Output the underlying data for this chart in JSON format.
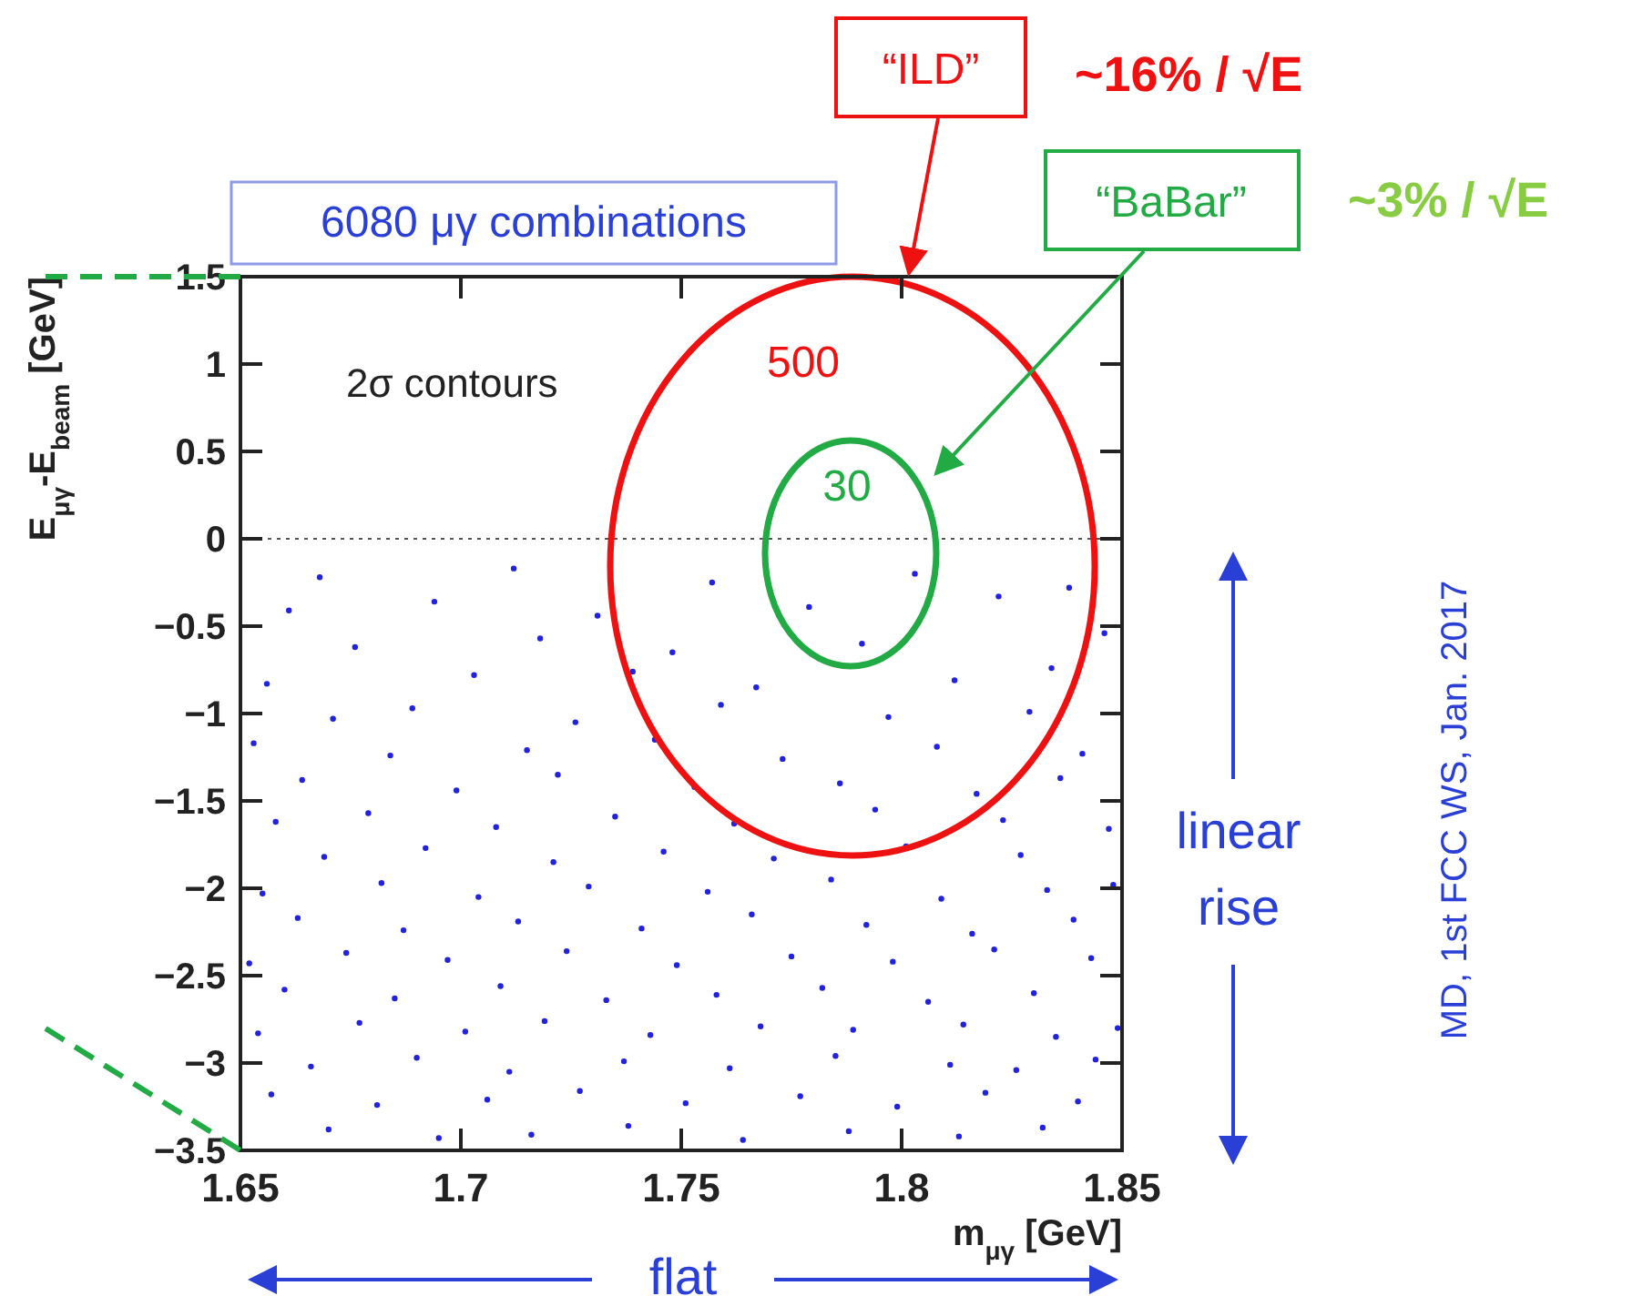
{
  "chart_data": {
    "type": "scatter",
    "xlabel": "m$_{μγ}$ [GeV]",
    "ylabel": "E$_{μγ}$-E$_{beam}$ [GeV]",
    "xlim": [
      1.65,
      1.85
    ],
    "xticks": [
      1.65,
      1.7,
      1.75,
      1.8,
      1.85
    ],
    "ylim": [
      -3.5,
      1.5
    ],
    "yticks": [
      1.5,
      1,
      0.5,
      0,
      {
        "value": -0.5,
        "label": "−0.5"
      },
      {
        "value": -1,
        "label": "−1"
      },
      {
        "value": -1.5,
        "label": "−1.5"
      },
      {
        "value": -2,
        "label": "−2"
      },
      {
        "value": -2.5,
        "label": "−2.5"
      },
      {
        "value": -3,
        "label": "−3"
      },
      {
        "value": -3.5,
        "label": "−3.5"
      }
    ],
    "grid": false,
    "marker": "circle",
    "ref_lines": [
      {
        "axis": "y",
        "value": 0,
        "color": "#555555",
        "line_style": "dotted"
      }
    ],
    "series": [
      {
        "color": "#2222dd",
        "x": [
          1.668,
          1.712,
          1.757,
          1.803,
          1.838,
          1.661,
          1.694,
          1.731,
          1.779,
          1.822,
          1.676,
          1.718,
          1.748,
          1.791,
          1.846,
          1.656,
          1.703,
          1.739,
          1.767,
          1.812,
          1.834,
          1.671,
          1.689,
          1.726,
          1.759,
          1.797,
          1.829,
          1.653,
          1.684,
          1.715,
          1.744,
          1.773,
          1.808,
          1.841,
          1.664,
          1.699,
          1.722,
          1.753,
          1.786,
          1.817,
          1.836,
          1.658,
          1.679,
          1.708,
          1.735,
          1.762,
          1.794,
          1.823,
          1.847,
          1.669,
          1.692,
          1.721,
          1.746,
          1.771,
          1.801,
          1.827,
          1.655,
          1.682,
          1.704,
          1.729,
          1.756,
          1.784,
          1.809,
          1.833,
          1.848,
          1.663,
          1.687,
          1.713,
          1.741,
          1.766,
          1.792,
          1.816,
          1.839,
          1.652,
          1.674,
          1.697,
          1.724,
          1.749,
          1.775,
          1.798,
          1.821,
          1.843,
          1.66,
          1.685,
          1.709,
          1.733,
          1.758,
          1.782,
          1.806,
          1.83,
          1.654,
          1.677,
          1.701,
          1.719,
          1.743,
          1.768,
          1.789,
          1.814,
          1.835,
          1.849,
          1.666,
          1.69,
          1.711,
          1.737,
          1.761,
          1.785,
          1.811,
          1.826,
          1.844,
          1.657,
          1.681,
          1.706,
          1.727,
          1.751,
          1.777,
          1.799,
          1.819,
          1.84,
          1.67,
          1.695,
          1.716,
          1.738,
          1.764,
          1.788,
          1.813,
          1.832
        ],
        "values": [
          -0.22,
          -0.17,
          -0.25,
          -0.2,
          -0.28,
          -0.41,
          -0.36,
          -0.44,
          -0.39,
          -0.33,
          -0.62,
          -0.57,
          -0.65,
          -0.6,
          -0.54,
          -0.83,
          -0.78,
          -0.76,
          -0.85,
          -0.81,
          -0.74,
          -1.03,
          -0.97,
          -1.05,
          -0.95,
          -1.02,
          -0.99,
          -1.17,
          -1.24,
          -1.21,
          -1.15,
          -1.26,
          -1.19,
          -1.23,
          -1.38,
          -1.44,
          -1.35,
          -1.42,
          -1.4,
          -1.46,
          -1.37,
          -1.62,
          -1.57,
          -1.65,
          -1.59,
          -1.63,
          -1.55,
          -1.61,
          -1.66,
          -1.82,
          -1.77,
          -1.85,
          -1.79,
          -1.83,
          -1.76,
          -1.81,
          -2.03,
          -1.97,
          -2.05,
          -1.99,
          -2.02,
          -1.95,
          -2.06,
          -2.01,
          -1.98,
          -2.17,
          -2.24,
          -2.19,
          -2.23,
          -2.15,
          -2.21,
          -2.26,
          -2.18,
          -2.43,
          -2.37,
          -2.41,
          -2.36,
          -2.44,
          -2.39,
          -2.42,
          -2.35,
          -2.4,
          -2.58,
          -2.63,
          -2.56,
          -2.64,
          -2.61,
          -2.57,
          -2.65,
          -2.6,
          -2.83,
          -2.77,
          -2.82,
          -2.76,
          -2.84,
          -2.79,
          -2.81,
          -2.78,
          -2.85,
          -2.8,
          -3.02,
          -2.97,
          -3.05,
          -2.99,
          -3.03,
          -2.96,
          -3.01,
          -3.04,
          -2.98,
          -3.18,
          -3.24,
          -3.21,
          -3.16,
          -3.23,
          -3.19,
          -3.25,
          -3.17,
          -3.22,
          -3.38,
          -3.43,
          -3.41,
          -3.36,
          -3.44,
          -3.39,
          -3.42,
          -3.37
        ]
      }
    ],
    "annotations": [
      "6080 μγ combinations",
      "2σ contours",
      "500",
      "30",
      "“ILD”",
      "~16% / √E",
      "“BaBar”",
      "~3% / √E",
      "flat",
      "linear rise",
      "MD, 1st FCC WS, Jan. 2017"
    ]
  }
}
